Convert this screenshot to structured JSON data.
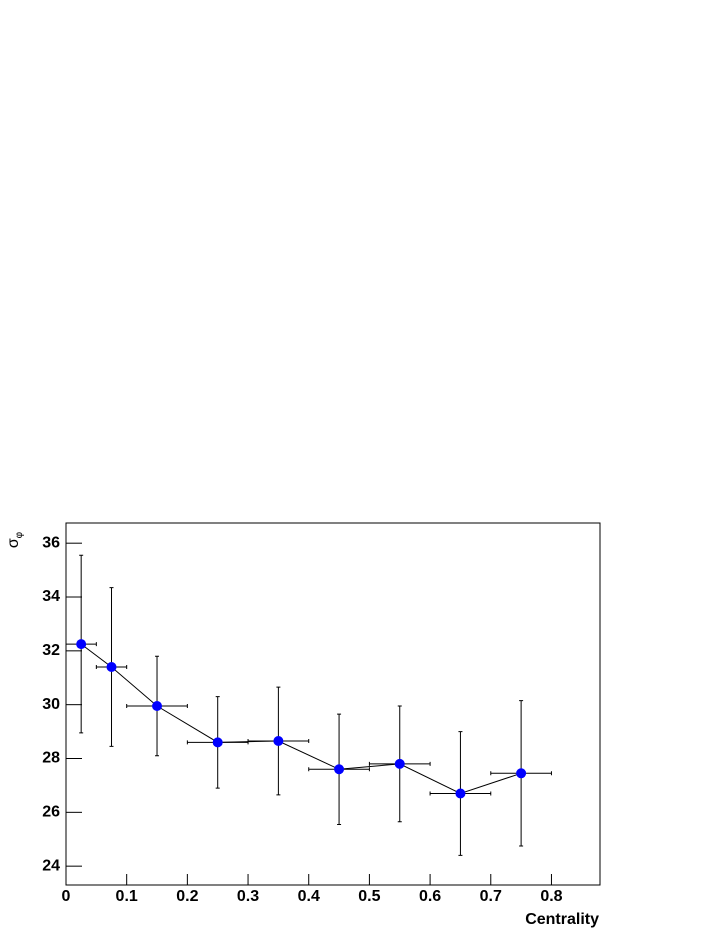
{
  "chart_data": {
    "type": "errorbar",
    "xlabel": "Centrality",
    "ylabel": "σ",
    "ylabel_sub": "φ",
    "x": [
      0.025,
      0.075,
      0.15,
      0.25,
      0.35,
      0.45,
      0.55,
      0.65,
      0.75
    ],
    "xerr": [
      0.025,
      0.025,
      0.05,
      0.05,
      0.05,
      0.05,
      0.05,
      0.05,
      0.05
    ],
    "values": [
      32.25,
      31.4,
      29.95,
      28.6,
      28.65,
      27.6,
      27.8,
      26.7,
      27.45
    ],
    "yerr": [
      3.3,
      2.95,
      1.85,
      1.7,
      2,
      2.05,
      2.15,
      2.3,
      2.7
    ],
    "color": "#0000ff",
    "xlim": [
      0,
      0.88
    ],
    "ylim": [
      23.3,
      36.75
    ],
    "xticks": [
      0,
      0.1,
      0.2,
      0.3,
      0.4,
      0.5,
      0.6,
      0.7,
      0.8
    ],
    "yticks": [
      24,
      26,
      28,
      30,
      32,
      34,
      36
    ]
  }
}
